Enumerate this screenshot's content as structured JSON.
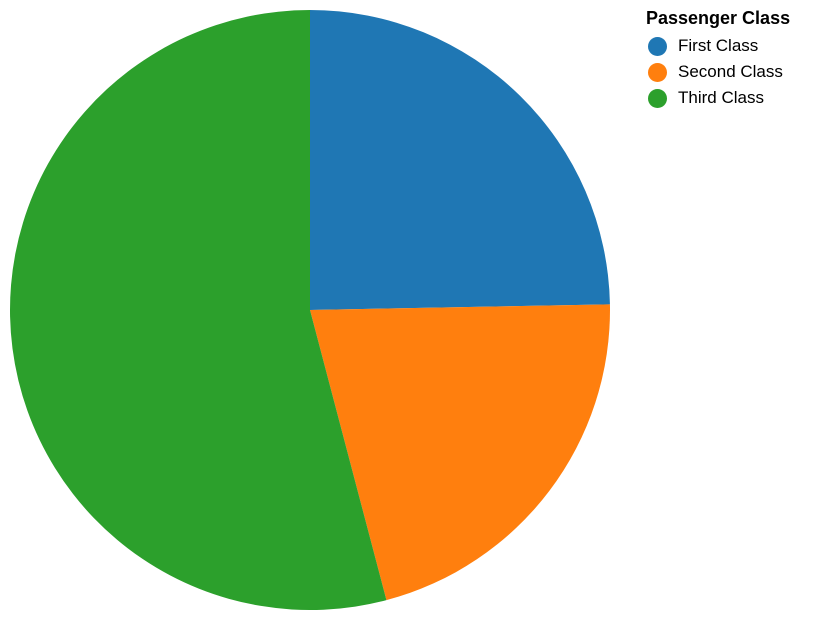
{
  "chart_data": {
    "type": "pie",
    "legend_title": "Passenger Class",
    "legend_position": "top-right",
    "categories": [
      "First Class",
      "Second Class",
      "Third Class"
    ],
    "values": [
      24.7,
      21.2,
      54.1
    ],
    "colors": [
      "#1f77b4",
      "#ff7f0e",
      "#2ca02c"
    ]
  }
}
